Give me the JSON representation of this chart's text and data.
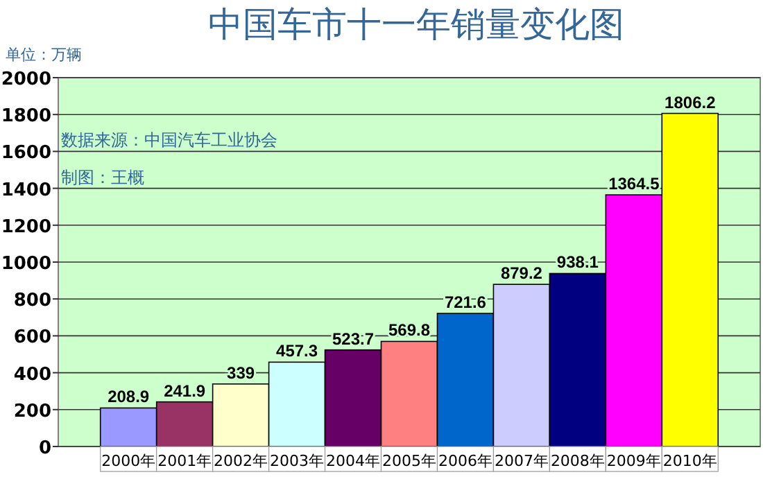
{
  "chart_data": {
    "type": "bar",
    "title": "中国车市十一年销量变化图",
    "ylabel": "单位：万辆",
    "annotations": [
      "数据来源：中国汽车工业协会",
      "制图：王概"
    ],
    "categories": [
      "2000年",
      "2001年",
      "2002年",
      "2003年",
      "2004年",
      "2005年",
      "2006年",
      "2007年",
      "2008年",
      "2009年",
      "2010年"
    ],
    "values": [
      208.9,
      241.9,
      339,
      457.3,
      523.7,
      569.8,
      721.6,
      879.2,
      938.1,
      1364.5,
      1806.2
    ],
    "colors": [
      "#9999ff",
      "#993366",
      "#ffffcc",
      "#ccffff",
      "#660066",
      "#ff8080",
      "#0066cc",
      "#ccccff",
      "#000080",
      "#ff00ff",
      "#ffff00"
    ],
    "ylim": [
      0,
      2000
    ],
    "yticks": [
      0,
      200,
      400,
      600,
      800,
      1000,
      1200,
      1400,
      1600,
      1800,
      2000
    ],
    "grid": "y",
    "data_labels": true
  }
}
